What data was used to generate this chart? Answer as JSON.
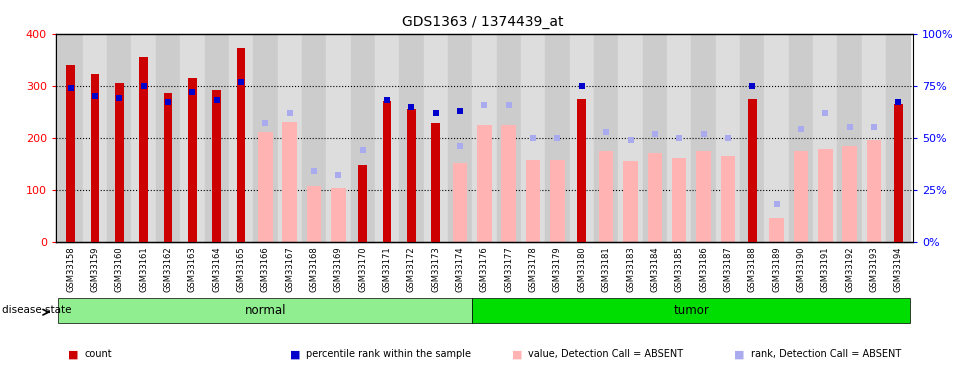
{
  "title": "GDS1363 / 1374439_at",
  "samples": [
    "GSM33158",
    "GSM33159",
    "GSM33160",
    "GSM33161",
    "GSM33162",
    "GSM33163",
    "GSM33164",
    "GSM33165",
    "GSM33166",
    "GSM33167",
    "GSM33168",
    "GSM33169",
    "GSM33170",
    "GSM33171",
    "GSM33172",
    "GSM33173",
    "GSM33174",
    "GSM33176",
    "GSM33177",
    "GSM33178",
    "GSM33179",
    "GSM33180",
    "GSM33181",
    "GSM33183",
    "GSM33184",
    "GSM33185",
    "GSM33186",
    "GSM33187",
    "GSM33188",
    "GSM33189",
    "GSM33190",
    "GSM33191",
    "GSM33192",
    "GSM33193",
    "GSM33194"
  ],
  "count_values": [
    340,
    322,
    305,
    355,
    287,
    315,
    292,
    373,
    null,
    null,
    null,
    null,
    148,
    270,
    255,
    228,
    null,
    null,
    null,
    null,
    null,
    275,
    null,
    null,
    null,
    null,
    null,
    null,
    275,
    null,
    null,
    null,
    null,
    null,
    265
  ],
  "percentile_values_pct": [
    74,
    70,
    69,
    75,
    67,
    72,
    68,
    77,
    null,
    null,
    null,
    null,
    null,
    68,
    65,
    62,
    63,
    null,
    null,
    null,
    null,
    75,
    null,
    null,
    null,
    null,
    null,
    null,
    75,
    null,
    null,
    null,
    null,
    null,
    67
  ],
  "absent_value_values": [
    null,
    null,
    null,
    null,
    null,
    null,
    null,
    null,
    212,
    230,
    108,
    103,
    null,
    null,
    null,
    null,
    152,
    225,
    225,
    158,
    157,
    null,
    175,
    155,
    170,
    162,
    175,
    165,
    null,
    45,
    175,
    178,
    185,
    195,
    null
  ],
  "absent_rank_pct": [
    null,
    null,
    null,
    null,
    null,
    null,
    null,
    null,
    57,
    62,
    34,
    32,
    44,
    null,
    null,
    null,
    46,
    66,
    66,
    50,
    50,
    null,
    53,
    49,
    52,
    50,
    52,
    50,
    null,
    18,
    54,
    62,
    55,
    55,
    null
  ],
  "disease_state": [
    "normal",
    "normal",
    "normal",
    "normal",
    "normal",
    "normal",
    "normal",
    "normal",
    "normal",
    "normal",
    "normal",
    "normal",
    "normal",
    "normal",
    "normal",
    "normal",
    "normal",
    "tumor",
    "tumor",
    "tumor",
    "tumor",
    "tumor",
    "tumor",
    "tumor",
    "tumor",
    "tumor",
    "tumor",
    "tumor",
    "tumor",
    "tumor",
    "tumor",
    "tumor",
    "tumor",
    "tumor",
    "tumor"
  ],
  "normal_color": "#90ee90",
  "tumor_color": "#00dd00",
  "bar_color_present": "#cc0000",
  "bar_color_absent_val": "#ffb3b3",
  "bar_color_percentile": "#0000cc",
  "bar_color_absent_rank": "#aaaaee",
  "ylim_left": [
    0,
    400
  ],
  "ylim_right": [
    0,
    100
  ],
  "yticks_left": [
    0,
    100,
    200,
    300,
    400
  ],
  "yticks_right": [
    0,
    25,
    50,
    75,
    100
  ]
}
